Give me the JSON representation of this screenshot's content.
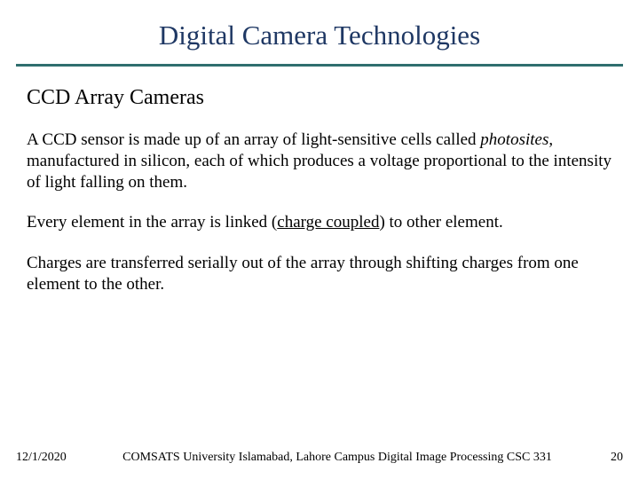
{
  "title": "Digital Camera Technologies",
  "subheading": "CCD Array Cameras",
  "para1_a": "A CCD sensor is made up of an array of light-sensitive cells called ",
  "para1_ital": "photosites",
  "para1_b": ", manufactured in silicon, each of which produces a voltage proportional to the intensity of light falling on them.",
  "para2_a": "Every element in the array is linked (",
  "para2_ul": "charge coupled",
  "para2_b": ") to other element.",
  "para3": "Charges are transferred serially out of the array through shifting charges from one element to the other.",
  "footer": {
    "date": "12/1/2020",
    "center": "COMSATS University Islamabad, Lahore Campus   Digital Image Processing CSC 331",
    "page": "20"
  },
  "colors": {
    "title": "#1f3864",
    "rule": "#2f6e6e",
    "text": "#000000",
    "background": "#ffffff"
  }
}
